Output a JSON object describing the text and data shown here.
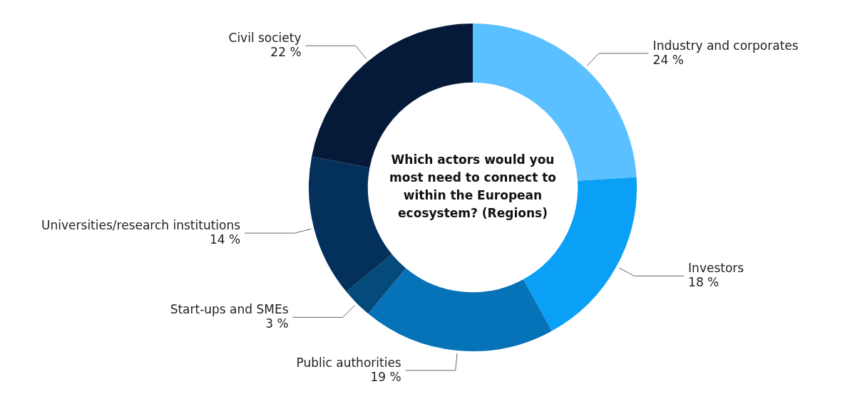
{
  "chart_data": {
    "type": "donut",
    "title": "Which actors would you most need to connect to within the European ecosystem? (Regions)",
    "categories": [
      "Industry and corporates",
      "Investors",
      "Public authorities",
      "Start-ups and SMEs",
      "Universities/research institutions",
      "Civil society"
    ],
    "values": [
      24,
      18,
      19,
      3,
      14,
      22
    ],
    "value_labels": [
      "24 %",
      "18 %",
      "19 %",
      "3 %",
      "14 %",
      "22 %"
    ],
    "colors": [
      "#5bc0ff",
      "#0aa0f5",
      "#0672b8",
      "#044a7a",
      "#04305c",
      "#041a38"
    ],
    "legend": false
  }
}
